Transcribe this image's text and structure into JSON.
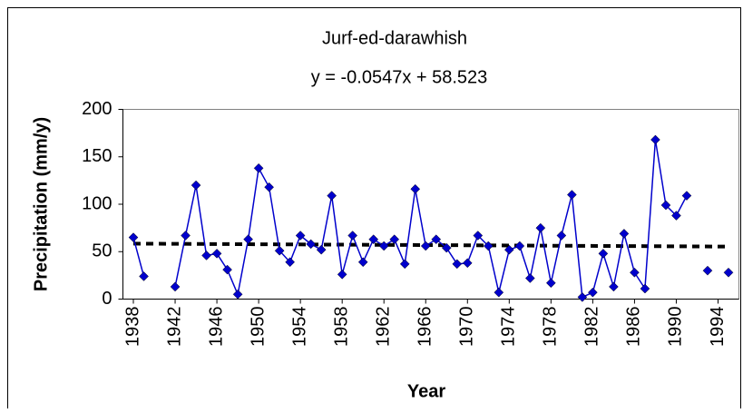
{
  "chart_data": {
    "type": "line",
    "title": "Jurf-ed-darawhish",
    "trendline": {
      "label": "y = -0.0547x + 58.523",
      "slope": -0.0547,
      "intercept": 58.523,
      "color": "#000000"
    },
    "x_label": "Year",
    "y_label": "Precipitation (mm/y)",
    "x": [
      1938,
      1939,
      1940,
      1941,
      1942,
      1943,
      1944,
      1945,
      1946,
      1947,
      1948,
      1949,
      1950,
      1951,
      1952,
      1953,
      1954,
      1955,
      1956,
      1957,
      1958,
      1959,
      1960,
      1961,
      1962,
      1963,
      1964,
      1965,
      1966,
      1967,
      1968,
      1969,
      1970,
      1971,
      1972,
      1973,
      1974,
      1975,
      1976,
      1977,
      1978,
      1979,
      1980,
      1981,
      1982,
      1983,
      1984,
      1985,
      1986,
      1987,
      1988,
      1989,
      1990,
      1991,
      1992,
      1993,
      1994,
      1995
    ],
    "series": [
      {
        "name": "Precipitation",
        "color": "#0000cc",
        "values": [
          65,
          24,
          null,
          null,
          13,
          67,
          120,
          46,
          48,
          31,
          5,
          63,
          138,
          118,
          51,
          39,
          67,
          58,
          52,
          109,
          26,
          67,
          39,
          63,
          56,
          63,
          37,
          116,
          56,
          63,
          54,
          37,
          38,
          67,
          56,
          7,
          52,
          56,
          22,
          75,
          17,
          67,
          110,
          2,
          7,
          48,
          13,
          69,
          28,
          11,
          168,
          99,
          88,
          109,
          null,
          30,
          null,
          28
        ]
      }
    ],
    "xlim": [
      1937,
      1996
    ],
    "xticks": [
      1938,
      1942,
      1946,
      1950,
      1954,
      1958,
      1962,
      1966,
      1970,
      1974,
      1978,
      1982,
      1986,
      1990,
      1994
    ],
    "ylim": [
      0,
      200
    ],
    "yticks": [
      0,
      50,
      100,
      150,
      200
    ],
    "grid": false
  }
}
